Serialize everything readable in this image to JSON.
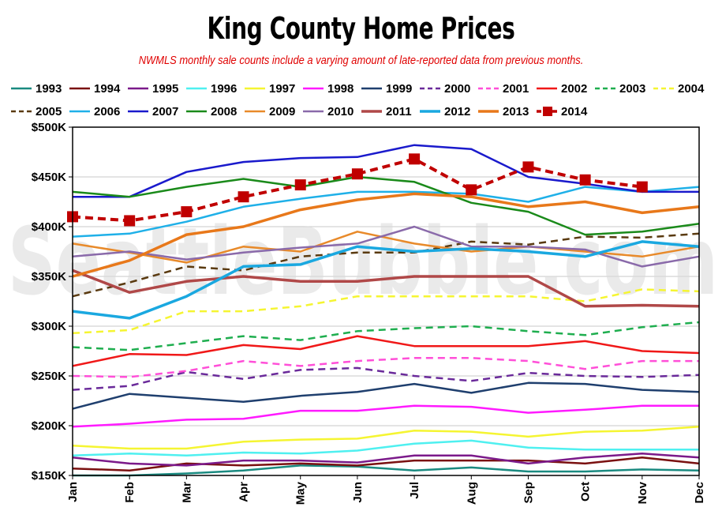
{
  "chart_data": {
    "type": "line",
    "title": "King County Home Prices",
    "subtitle": "NWMLS monthly sale counts include a varying amount of late-reported  data from previous months.",
    "watermark": "SeattleBubble.com",
    "categories": [
      "Jan",
      "Feb",
      "Mar",
      "Apr",
      "May",
      "Jun",
      "Jul",
      "Aug",
      "Sep",
      "Oct",
      "Nov",
      "Dec"
    ],
    "ylim": [
      150000,
      500000
    ],
    "yticks": [
      150000,
      200000,
      250000,
      300000,
      350000,
      400000,
      450000,
      500000
    ],
    "ytick_labels": [
      "$150K",
      "$200K",
      "$250K",
      "$300K",
      "$350K",
      "$400K",
      "$450K",
      "$500K"
    ],
    "grid": "horizontal",
    "legend_position": "top",
    "series": [
      {
        "name": "1993",
        "color": "#1a8a80",
        "style": "solid",
        "width": 2.5,
        "values": [
          150000,
          150000,
          152000,
          155000,
          160000,
          159000,
          155000,
          158000,
          154000,
          154000,
          156000,
          155000
        ]
      },
      {
        "name": "1994",
        "color": "#7a1010",
        "style": "solid",
        "width": 2.5,
        "values": [
          157000,
          155000,
          162000,
          160000,
          162000,
          160000,
          165000,
          165000,
          165000,
          162000,
          168000,
          162000
        ]
      },
      {
        "name": "1995",
        "color": "#7b1a8a",
        "style": "solid",
        "width": 2.5,
        "values": [
          168000,
          162000,
          160000,
          165000,
          165000,
          163000,
          170000,
          170000,
          162000,
          168000,
          172000,
          168000
        ]
      },
      {
        "name": "1996",
        "color": "#4ff0f0",
        "style": "solid",
        "width": 2.5,
        "values": [
          170000,
          172000,
          170000,
          173000,
          172000,
          175000,
          182000,
          185000,
          178000,
          176000,
          176000,
          176000
        ]
      },
      {
        "name": "1997",
        "color": "#f5f532",
        "style": "solid",
        "width": 2.5,
        "values": [
          180000,
          177000,
          177000,
          184000,
          186000,
          187000,
          195000,
          194000,
          189000,
          194000,
          195000,
          199000
        ]
      },
      {
        "name": "1998",
        "color": "#ff1aff",
        "style": "solid",
        "width": 2.5,
        "values": [
          199000,
          202000,
          206000,
          207000,
          215000,
          215000,
          220000,
          219000,
          213000,
          216000,
          220000,
          220000
        ]
      },
      {
        "name": "1999",
        "color": "#1f3f6e",
        "style": "solid",
        "width": 2.5,
        "values": [
          217000,
          232000,
          228000,
          224000,
          230000,
          234000,
          242000,
          233000,
          243000,
          242000,
          236000,
          234000
        ]
      },
      {
        "name": "2000",
        "color": "#6a2a9a",
        "style": "dash",
        "width": 2.5,
        "values": [
          236000,
          240000,
          254000,
          247000,
          256000,
          258000,
          250000,
          245000,
          253000,
          250000,
          249000,
          251000
        ]
      },
      {
        "name": "2001",
        "color": "#ff4fd8",
        "style": "dash",
        "width": 2.5,
        "values": [
          250000,
          249000,
          255000,
          265000,
          260000,
          265000,
          268000,
          268000,
          265000,
          257000,
          265000,
          265000
        ]
      },
      {
        "name": "2002",
        "color": "#f01818",
        "style": "solid",
        "width": 2.5,
        "values": [
          260000,
          272000,
          271000,
          281000,
          277000,
          290000,
          280000,
          280000,
          280000,
          285000,
          275000,
          273000
        ]
      },
      {
        "name": "2003",
        "color": "#1fae4f",
        "style": "dash",
        "width": 2.5,
        "values": [
          279000,
          276000,
          283000,
          290000,
          286000,
          295000,
          298000,
          300000,
          295000,
          291000,
          299000,
          304000
        ]
      },
      {
        "name": "2004",
        "color": "#f5f532",
        "style": "dash",
        "width": 2.5,
        "values": [
          293000,
          296000,
          315000,
          315000,
          320000,
          330000,
          330000,
          330000,
          330000,
          325000,
          337000,
          335000
        ]
      },
      {
        "name": "2005",
        "color": "#5a3a10",
        "style": "dash",
        "width": 2.5,
        "values": [
          330000,
          344000,
          360000,
          356000,
          370000,
          374000,
          374000,
          385000,
          382000,
          390000,
          389000,
          393000
        ]
      },
      {
        "name": "2006",
        "color": "#1fb0e8",
        "style": "solid",
        "width": 2.5,
        "values": [
          390000,
          393000,
          405000,
          420000,
          428000,
          435000,
          435000,
          433000,
          425000,
          440000,
          435000,
          440000
        ]
      },
      {
        "name": "2007",
        "color": "#1a1acc",
        "style": "solid",
        "width": 2.5,
        "values": [
          430000,
          430000,
          455000,
          465000,
          469000,
          470000,
          482000,
          478000,
          450000,
          443000,
          435000,
          435000
        ]
      },
      {
        "name": "2008",
        "color": "#1a8a1a",
        "style": "solid",
        "width": 2.5,
        "values": [
          435000,
          430000,
          440000,
          448000,
          440000,
          450000,
          445000,
          424000,
          415000,
          392000,
          395000,
          403000
        ]
      },
      {
        "name": "2009",
        "color": "#e88a2a",
        "style": "solid",
        "width": 2.5,
        "values": [
          383000,
          374000,
          364000,
          380000,
          375000,
          395000,
          383000,
          375000,
          380000,
          375000,
          370000,
          380000
        ]
      },
      {
        "name": "2010",
        "color": "#8a6aaa",
        "style": "solid",
        "width": 2.5,
        "values": [
          370000,
          375000,
          367000,
          374000,
          379000,
          383000,
          400000,
          380000,
          380000,
          377000,
          360000,
          370000
        ]
      },
      {
        "name": "2011",
        "color": "#b04848",
        "style": "solid",
        "width": 3.5,
        "values": [
          356000,
          334000,
          345000,
          350000,
          345000,
          345000,
          350000,
          350000,
          350000,
          320000,
          321000,
          320000
        ]
      },
      {
        "name": "2012",
        "color": "#1aa8e0",
        "style": "solid",
        "width": 3.5,
        "values": [
          315000,
          308000,
          330000,
          360000,
          362000,
          380000,
          375000,
          378000,
          375000,
          370000,
          385000,
          380000
        ]
      },
      {
        "name": "2013",
        "color": "#e8781a",
        "style": "solid",
        "width": 3.5,
        "values": [
          350000,
          366000,
          392000,
          400000,
          417000,
          427000,
          433000,
          430000,
          420000,
          425000,
          414000,
          420000
        ]
      },
      {
        "name": "2014",
        "color": "#c00000",
        "style": "dash-marker",
        "width": 4,
        "values": [
          410000,
          406000,
          415000,
          430000,
          442000,
          453000,
          468000,
          437000,
          460000,
          447000,
          440000,
          null
        ]
      }
    ]
  }
}
